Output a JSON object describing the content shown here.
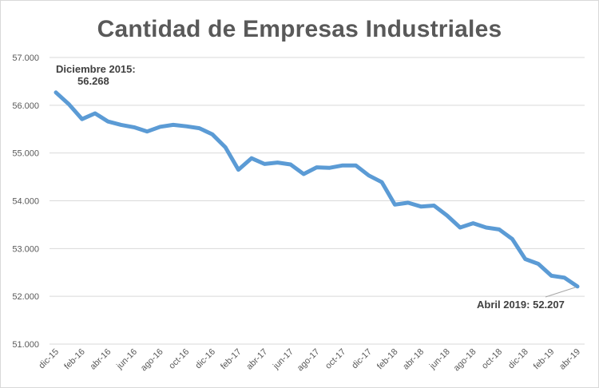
{
  "chart_data": {
    "type": "line",
    "title": "Cantidad de Empresas Industriales",
    "xlabel": "",
    "ylabel": "",
    "ylim": [
      51000,
      57000
    ],
    "y_ticks": [
      "51.000",
      "52.000",
      "53.000",
      "54.000",
      "55.000",
      "56.000",
      "57.000"
    ],
    "y_tick_values": [
      51000,
      52000,
      53000,
      54000,
      55000,
      56000,
      57000
    ],
    "grid": true,
    "legend": "none",
    "line_color": "#5b9bd5",
    "x": [
      "dic-15",
      "ene-16",
      "feb-16",
      "mar-16",
      "abr-16",
      "may-16",
      "jun-16",
      "jul-16",
      "ago-16",
      "sep-16",
      "oct-16",
      "nov-16",
      "dic-16",
      "ene-17",
      "feb-17",
      "mar-17",
      "abr-17",
      "may-17",
      "jun-17",
      "jul-17",
      "ago-17",
      "sep-17",
      "oct-17",
      "nov-17",
      "dic-17",
      "ene-18",
      "feb-18",
      "mar-18",
      "abr-18",
      "may-18",
      "jun-18",
      "jul-18",
      "ago-18",
      "sep-18",
      "oct-18",
      "nov-18",
      "dic-18",
      "ene-19",
      "feb-19",
      "mar-19",
      "abr-19"
    ],
    "x_tick_labels": [
      "dic-15",
      "feb-16",
      "abr-16",
      "jun-16",
      "ago-16",
      "oct-16",
      "dic-16",
      "feb-17",
      "abr-17",
      "jun-17",
      "ago-17",
      "oct-17",
      "dic-17",
      "feb-18",
      "abr-18",
      "jun-18",
      "ago-18",
      "oct-18",
      "dic-18",
      "feb-19",
      "abr-19"
    ],
    "series": [
      {
        "values": [
          56268,
          56020,
          55710,
          55830,
          55660,
          55590,
          55540,
          55450,
          55550,
          55590,
          55560,
          55520,
          55390,
          55120,
          54650,
          54890,
          54770,
          54800,
          54760,
          54560,
          54700,
          54690,
          54740,
          54740,
          54530,
          54390,
          53920,
          53960,
          53880,
          53900,
          53690,
          53440,
          53530,
          53440,
          53400,
          53200,
          52780,
          52680,
          52430,
          52390,
          52207
        ]
      }
    ],
    "annotations": [
      {
        "name": "start",
        "line1": "Diciembre 2015:",
        "line2": "56.268"
      },
      {
        "name": "end",
        "text": "Abril 2019: 52.207"
      }
    ]
  }
}
